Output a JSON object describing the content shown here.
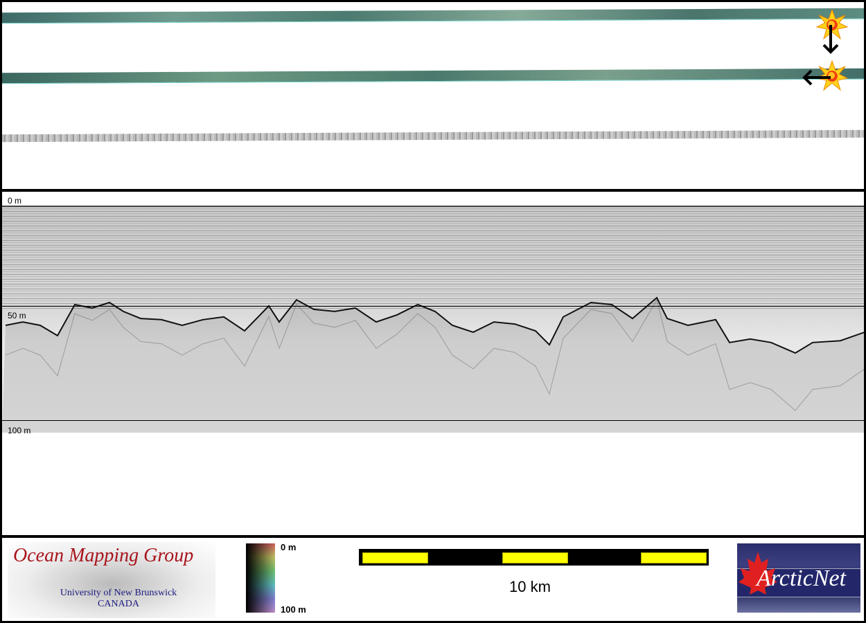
{
  "markers": [
    {
      "icon": "sun-marker-icon",
      "arrow": "down"
    },
    {
      "icon": "sun-marker-icon",
      "arrow": "left"
    }
  ],
  "depth_labels": {
    "top": "0 m",
    "mid": "50 m",
    "bottom": "100 m"
  },
  "seafloor_profile": {
    "units": [
      "km",
      "m"
    ],
    "points": [
      [
        0.1,
        58.5
      ],
      [
        0.6,
        57
      ],
      [
        1.1,
        58.5
      ],
      [
        1.6,
        63
      ],
      [
        2.1,
        49.4
      ],
      [
        2.6,
        50.9
      ],
      [
        3.1,
        48.5
      ],
      [
        3.5,
        52.4
      ],
      [
        4,
        55.5
      ],
      [
        4.6,
        56
      ],
      [
        5.2,
        58.5
      ],
      [
        5.8,
        56
      ],
      [
        6.4,
        54.8
      ],
      [
        7,
        60.9
      ],
      [
        7.7,
        50
      ],
      [
        8,
        57
      ],
      [
        8.5,
        47.3
      ],
      [
        9,
        51.5
      ],
      [
        9.6,
        52.4
      ],
      [
        10.2,
        50.9
      ],
      [
        10.8,
        57
      ],
      [
        11.4,
        53.9
      ],
      [
        12,
        49.4
      ],
      [
        12.5,
        52.4
      ],
      [
        13,
        58.5
      ],
      [
        13.6,
        61.5
      ],
      [
        14.2,
        57
      ],
      [
        14.8,
        57.9
      ],
      [
        15.4,
        60.9
      ],
      [
        15.8,
        67
      ],
      [
        16.2,
        54.8
      ],
      [
        17,
        48.5
      ],
      [
        17.6,
        49.4
      ],
      [
        18.2,
        55.5
      ],
      [
        18.9,
        46.4
      ],
      [
        19.2,
        55.5
      ],
      [
        19.8,
        58.5
      ],
      [
        20.6,
        56
      ],
      [
        21,
        66
      ],
      [
        21.6,
        64.5
      ],
      [
        22.2,
        66
      ],
      [
        22.9,
        70.6
      ],
      [
        23.4,
        66
      ],
      [
        24.2,
        65.2
      ],
      [
        24.9,
        61.5
      ]
    ]
  },
  "footer": {
    "omg_logo": {
      "title": "Ocean Mapping Group",
      "line1": "University of New Brunswick",
      "line2": "CANADA"
    },
    "colorbar": {
      "top": "0 m",
      "bottom": "100 m"
    },
    "scalebar": {
      "label": "10 km",
      "colors": {
        "fill": "#ffff00",
        "bar": "#000000"
      }
    },
    "arcticnet_logo": {
      "text": "ArcticNet"
    }
  }
}
